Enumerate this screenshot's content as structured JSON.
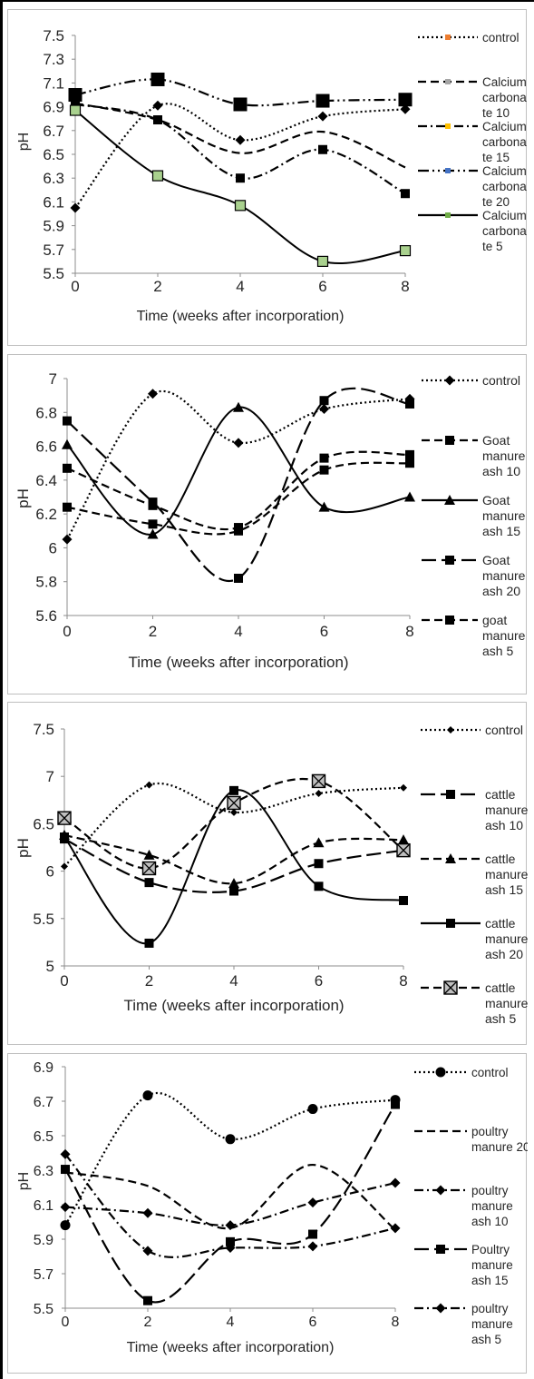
{
  "chart_data": [
    {
      "type": "line",
      "xlabel": "Time (weeks after incorporation)",
      "ylabel": "pH",
      "x": [
        0,
        2,
        4,
        6,
        8
      ],
      "xticks": [
        "0",
        "2",
        "4",
        "6",
        "8"
      ],
      "ylim": [
        5.5,
        7.5
      ],
      "yticks": [
        "5.5",
        "5.7",
        "5.9",
        "6.1",
        "6.3",
        "6.5",
        "6.7",
        "6.9",
        "7.1",
        "7.3",
        "7.5"
      ],
      "legend_position": "right",
      "series": [
        {
          "name": "control",
          "values": [
            6.05,
            6.91,
            6.62,
            6.82,
            6.88
          ],
          "dash": "dot",
          "marker": "diamond",
          "color": "#000000"
        },
        {
          "name": "Calcium carbona te 10",
          "values": [
            6.93,
            6.79,
            6.51,
            6.69,
            6.39
          ],
          "dash": "dash",
          "marker": "none",
          "color": "#000000"
        },
        {
          "name": "Calcium carbona te 15",
          "values": [
            6.92,
            6.79,
            6.3,
            6.54,
            6.17
          ],
          "dash": "dashdot",
          "marker": "square",
          "color": "#000000"
        },
        {
          "name": "Calcium carbona te 20",
          "values": [
            7.0,
            7.13,
            6.92,
            6.95,
            6.96
          ],
          "dash": "dashdotdot",
          "marker": "bigsquare",
          "color": "#000000"
        },
        {
          "name": "Calcium carbona te 5",
          "values": [
            6.87,
            6.32,
            6.07,
            5.6,
            5.69
          ],
          "dash": "solid",
          "marker": "greensquare",
          "color": "#000000"
        }
      ],
      "legend_marker_colors": [
        "#ed7d31",
        "#a5a5a5",
        "#ffc000",
        "#4472c4",
        "#70ad47"
      ],
      "legend_labels": [
        [
          "control"
        ],
        [
          "Calcium",
          "carbona",
          "te 10"
        ],
        [
          "Calcium",
          "carbona",
          "te 15"
        ],
        [
          "Calcium",
          "carbona",
          "te 20"
        ],
        [
          "Calcium",
          "carbona",
          "te 5"
        ]
      ]
    },
    {
      "type": "line",
      "xlabel": "Time (weeks after incorporation)",
      "ylabel": "pH",
      "x": [
        0,
        2,
        4,
        6,
        8
      ],
      "xticks": [
        "0",
        "2",
        "4",
        "6",
        "8"
      ],
      "ylim": [
        5.6,
        7.0
      ],
      "yticks": [
        "5.6",
        "5.8",
        "6",
        "6.2",
        "6.4",
        "6.6",
        "6.8",
        "7"
      ],
      "legend_position": "right",
      "series": [
        {
          "name": "control",
          "values": [
            6.05,
            6.91,
            6.62,
            6.82,
            6.88
          ],
          "dash": "dot",
          "marker": "diamond",
          "color": "#000000"
        },
        {
          "name": "Goat manure ash 10",
          "values": [
            6.47,
            6.25,
            6.12,
            6.53,
            6.55
          ],
          "dash": "dash",
          "marker": "square",
          "color": "#000000"
        },
        {
          "name": "Goat manure ash 15",
          "values": [
            6.61,
            6.08,
            6.83,
            6.24,
            6.3
          ],
          "dash": "solid",
          "marker": "triangle",
          "color": "#000000"
        },
        {
          "name": "Goat manure ash 20",
          "values": [
            6.75,
            6.27,
            5.82,
            6.87,
            6.85
          ],
          "dash": "longdash",
          "marker": "square",
          "color": "#000000"
        },
        {
          "name": "goat manure ash 5",
          "values": [
            6.24,
            6.14,
            6.1,
            6.46,
            6.5
          ],
          "dash": "dash",
          "marker": "square",
          "color": "#000000"
        }
      ],
      "legend_labels": [
        [
          "control"
        ],
        [
          "Goat",
          "manure",
          "ash 10"
        ],
        [
          "Goat",
          "manure",
          "ash 15"
        ],
        [
          "Goat",
          "manure",
          "ash 20"
        ],
        [
          "goat",
          "manure",
          "ash 5"
        ]
      ]
    },
    {
      "type": "line",
      "xlabel": "Time (weeks after incorporation)",
      "ylabel": "pH",
      "x": [
        0,
        2,
        4,
        6,
        8
      ],
      "xticks": [
        "0",
        "2",
        "4",
        "6",
        "8"
      ],
      "ylim": [
        5.0,
        7.5
      ],
      "yticks": [
        "5",
        "5.5",
        "6",
        "6.5",
        "7",
        "7.5"
      ],
      "legend_position": "right",
      "series": [
        {
          "name": "control",
          "values": [
            6.05,
            6.91,
            6.62,
            6.82,
            6.88
          ],
          "dash": "dot",
          "marker": "smalldiamond",
          "color": "#000000"
        },
        {
          "name": "cattle manure ash 10",
          "values": [
            6.34,
            5.88,
            5.79,
            6.08,
            6.22
          ],
          "dash": "longdash",
          "marker": "square",
          "color": "#000000"
        },
        {
          "name": "cattle manure ash 15",
          "values": [
            6.38,
            6.17,
            5.87,
            6.3,
            6.33
          ],
          "dash": "dash",
          "marker": "triangle",
          "color": "#000000"
        },
        {
          "name": "cattle manure ash 20",
          "values": [
            6.36,
            5.24,
            6.85,
            5.84,
            5.69
          ],
          "dash": "solid",
          "marker": "square",
          "color": "#000000"
        },
        {
          "name": "cattle manure ash 5",
          "values": [
            6.56,
            6.03,
            6.72,
            6.95,
            6.22
          ],
          "dash": "dash",
          "marker": "xsquare",
          "color": "#000000"
        }
      ],
      "legend_labels": [
        [
          "control"
        ],
        [
          "cattle",
          "manure",
          "ash 10"
        ],
        [
          "cattle",
          "manure",
          "ash 15"
        ],
        [
          "cattle",
          "manure",
          "ash 20"
        ],
        [
          "cattle",
          "manure",
          "ash 5"
        ]
      ]
    },
    {
      "type": "line",
      "xlabel": "Time (weeks after incorporation)",
      "ylabel": "pH",
      "x": [
        0,
        2,
        4,
        6,
        8
      ],
      "xticks": [
        "0",
        "2",
        "4",
        "6",
        "8"
      ],
      "ylim": [
        5.5,
        7.1
      ],
      "yticks": [
        "5.5",
        "5.7",
        "5.9",
        "6.1",
        "6.3",
        "6.5",
        "6.7",
        "6.9"
      ],
      "legend_position": "right",
      "series": [
        {
          "name": "control",
          "values": [
            6.05,
            6.91,
            6.62,
            6.82,
            6.88
          ],
          "dash": "dot",
          "marker": "circle",
          "color": "#000000"
        },
        {
          "name": "poultry manure 20",
          "values": [
            6.4,
            6.31,
            6.03,
            6.45,
            6.02
          ],
          "dash": "dash",
          "marker": "none",
          "color": "#000000"
        },
        {
          "name": "poultry manure ash 10",
          "values": [
            6.52,
            5.88,
            5.9,
            5.91,
            6.03
          ],
          "dash": "dashdot",
          "marker": "diamond",
          "color": "#000000"
        },
        {
          "name": "Poultry manure ash 15",
          "values": [
            6.42,
            5.55,
            5.94,
            5.99,
            6.85
          ],
          "dash": "longdash",
          "marker": "square",
          "color": "#000000"
        },
        {
          "name": "poultry manure ash 5",
          "values": [
            6.17,
            6.13,
            6.05,
            6.2,
            6.33
          ],
          "dash": "dashdot",
          "marker": "diamond",
          "color": "#000000"
        }
      ],
      "legend_labels": [
        [
          "control"
        ],
        [
          "poultry",
          "manure 20"
        ],
        [
          "poultry",
          "manure",
          "ash 10"
        ],
        [
          "Poultry",
          "manure",
          "ash 15"
        ],
        [
          "poultry",
          "manure",
          "ash 5"
        ]
      ]
    }
  ]
}
